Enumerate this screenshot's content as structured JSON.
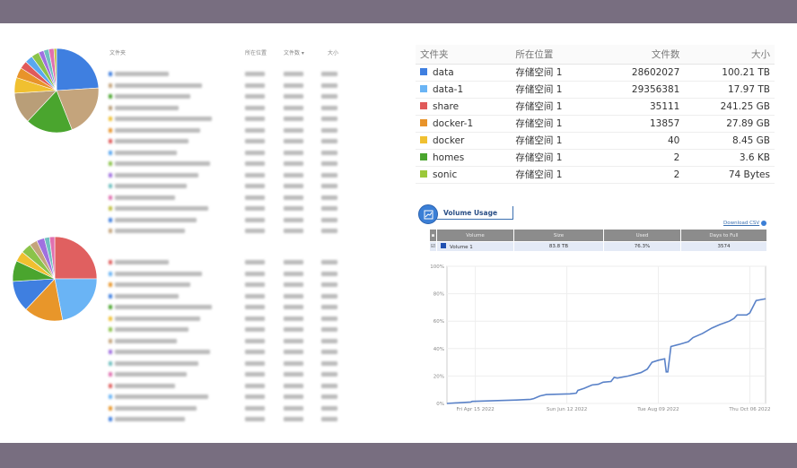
{
  "left_tables": {
    "top": {
      "headers": [
        "文件夹",
        "所在位置",
        "文件数 ▾",
        "大小"
      ]
    },
    "pie_top": {
      "type": "pie",
      "colors": [
        "#3f7fe0",
        "#c4a47c",
        "#4aa52e",
        "#b99e78",
        "#f0c030",
        "#e8932a",
        "#e05a5a",
        "#5aa8f0",
        "#8bc34a",
        "#a070e0",
        "#70c0c0",
        "#e070b0",
        "#c0c040"
      ],
      "values": [
        24,
        20,
        18,
        12,
        6,
        4,
        3,
        3,
        3,
        2,
        2,
        2,
        1
      ]
    },
    "pie_bottom": {
      "type": "pie",
      "colors": [
        "#e06060",
        "#6ab4f5",
        "#e8962a",
        "#3f7fe0",
        "#4aa52e",
        "#f0c030",
        "#8bc34a",
        "#c4a47c",
        "#a070e0",
        "#70c0c0",
        "#e070b0"
      ],
      "values": [
        25,
        22,
        15,
        12,
        8,
        4,
        4,
        3,
        3,
        2,
        2
      ]
    }
  },
  "folder_table": {
    "headers": {
      "folder": "文件夹",
      "location": "所在位置",
      "files": "文件数",
      "size": "大小"
    },
    "rows": [
      {
        "name": "data",
        "color": "#3f7fe0",
        "location": "存储空间 1",
        "files": "28602027",
        "size": "100.21 TB"
      },
      {
        "name": "data-1",
        "color": "#6ab4f5",
        "location": "存储空间 1",
        "files": "29356381",
        "size": "17.97 TB"
      },
      {
        "name": "share",
        "color": "#e05a5a",
        "location": "存储空间 1",
        "files": "35111",
        "size": "241.25 GB"
      },
      {
        "name": "docker-1",
        "color": "#e8932a",
        "location": "存储空间 1",
        "files": "13857",
        "size": "27.89 GB"
      },
      {
        "name": "docker",
        "color": "#f0c030",
        "location": "存储空间 1",
        "files": "40",
        "size": "8.45 GB"
      },
      {
        "name": "homes",
        "color": "#4aa52e",
        "location": "存储空间 1",
        "files": "2",
        "size": "3.6 KB"
      },
      {
        "name": "sonic",
        "color": "#9bc83a",
        "location": "存储空间 1",
        "files": "2",
        "size": "74 Bytes"
      }
    ]
  },
  "volume_usage": {
    "title": "Volume Usage",
    "download_label": "Download CSV",
    "headers": [
      "Volume",
      "Size",
      "Used",
      "Days to Full"
    ],
    "row": {
      "volume": "Volume 1",
      "size": "83.8 TB",
      "used": "76.3%",
      "days": "3574",
      "checked": true,
      "color": "#1f4fb0"
    }
  },
  "chart_data": {
    "type": "line",
    "xlim": [
      "2022-03-28",
      "2022-10-16"
    ],
    "ylim": [
      0,
      100
    ],
    "yticks": [
      "0%",
      "20%",
      "40%",
      "60%",
      "80%",
      "100%"
    ],
    "xticks": [
      {
        "date": "2022-04-15",
        "label": "Fri Apr 15 2022"
      },
      {
        "date": "2022-06-12",
        "label": "Sun Jun 12 2022"
      },
      {
        "date": "2022-08-09",
        "label": "Tue Aug 09 2022"
      },
      {
        "date": "2022-10-06",
        "label": "Thu Oct 06 2022"
      }
    ],
    "grid": true,
    "color": "#5a82c8",
    "points": [
      [
        "2022-03-28",
        0
      ],
      [
        "2022-04-12",
        1
      ],
      [
        "2022-04-13",
        1.5
      ],
      [
        "2022-05-11",
        2.5
      ],
      [
        "2022-05-20",
        3
      ],
      [
        "2022-05-22",
        3.5
      ],
      [
        "2022-05-26",
        5.5
      ],
      [
        "2022-05-30",
        6.5
      ],
      [
        "2022-06-14",
        7
      ],
      [
        "2022-06-18",
        7.5
      ],
      [
        "2022-06-19",
        9.5
      ],
      [
        "2022-06-23",
        11
      ],
      [
        "2022-06-28",
        13.5
      ],
      [
        "2022-07-02",
        14
      ],
      [
        "2022-07-05",
        15.5
      ],
      [
        "2022-07-10",
        16
      ],
      [
        "2022-07-12",
        19
      ],
      [
        "2022-07-14",
        18.5
      ],
      [
        "2022-07-21",
        20
      ],
      [
        "2022-07-29",
        22.5
      ],
      [
        "2022-08-02",
        25
      ],
      [
        "2022-08-05",
        30
      ],
      [
        "2022-08-09",
        31.5
      ],
      [
        "2022-08-13",
        32.5
      ],
      [
        "2022-08-14",
        23
      ],
      [
        "2022-08-15",
        23
      ],
      [
        "2022-08-17",
        41.5
      ],
      [
        "2022-08-22",
        43
      ],
      [
        "2022-08-28",
        45
      ],
      [
        "2022-08-31",
        48
      ],
      [
        "2022-09-06",
        51
      ],
      [
        "2022-09-12",
        55
      ],
      [
        "2022-09-17",
        57.5
      ],
      [
        "2022-09-23",
        60
      ],
      [
        "2022-09-26",
        62
      ],
      [
        "2022-09-28",
        64.5
      ],
      [
        "2022-10-04",
        64.5
      ],
      [
        "2022-10-06",
        66
      ],
      [
        "2022-10-10",
        75
      ],
      [
        "2022-10-16",
        76.3
      ]
    ]
  }
}
